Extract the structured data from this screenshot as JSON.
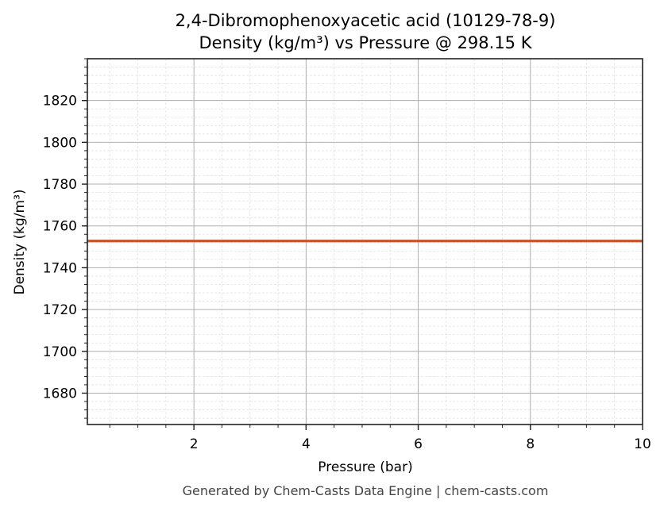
{
  "chart_data": {
    "type": "line",
    "title": "2,4-Dibromophenoxyacetic acid (10129-78-9)",
    "subtitle": "Density (kg/m³) vs Pressure @ 298.15 K",
    "xlabel": "Pressure (bar)",
    "ylabel": "Density (kg/m³)",
    "xlim": [
      0.1,
      10
    ],
    "ylim": [
      1665,
      1840
    ],
    "x_ticks": [
      2,
      4,
      6,
      8,
      10
    ],
    "x_tick_labels": [
      "2",
      "4",
      "6",
      "8",
      "10"
    ],
    "x_minor_step": 0.5,
    "y_ticks": [
      1680,
      1700,
      1720,
      1740,
      1760,
      1780,
      1800,
      1820
    ],
    "y_tick_labels": [
      "1680",
      "1700",
      "1720",
      "1740",
      "1760",
      "1780",
      "1800",
      "1820"
    ],
    "y_minor_step": 4,
    "grid": true,
    "legend": null,
    "series": [
      {
        "name": "Density",
        "color": "#c9522a",
        "x": [
          0.1,
          1,
          2,
          3,
          4,
          5,
          6,
          7,
          8,
          9,
          10
        ],
        "values": [
          1752.8,
          1752.8,
          1752.8,
          1752.8,
          1752.8,
          1752.8,
          1752.8,
          1752.8,
          1752.8,
          1752.8,
          1752.8
        ]
      }
    ]
  },
  "footer": "Generated by Chem-Casts Data Engine | chem-casts.com",
  "colors": {
    "line": "#c9522a",
    "major_grid": "#b0b0b0",
    "minor_grid": "#e2e2e2",
    "axis": "#222222",
    "footer_text": "#444444"
  }
}
